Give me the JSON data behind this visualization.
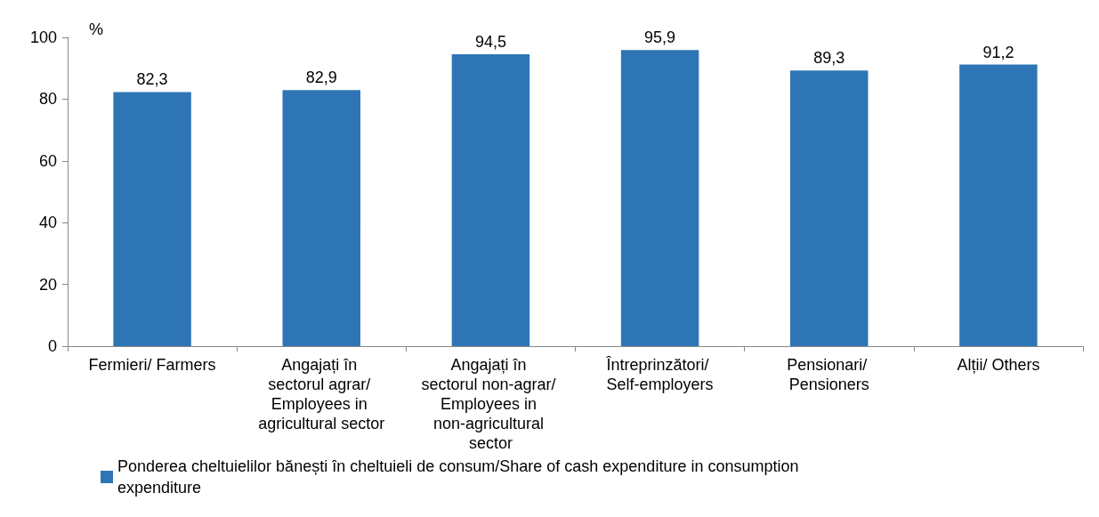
{
  "chart_data": {
    "type": "bar",
    "ylabel": "%",
    "categories": [
      "Fermieri/ Farmers",
      "Angajați în sectorul agrar/ Employees in agricultural sector",
      "Angajați în sectorul non-agrar/ Employees in non-agricultural sector",
      "Întreprinzători/ Self-employers",
      "Pensionari/ Pensioners",
      "Alții/ Others"
    ],
    "series": [
      {
        "name": "Ponderea cheltuielilor bănești în cheltuieli de consum/Share of cash expenditure in consumption expenditure",
        "color": "#2e75b6",
        "values": [
          82.3,
          82.9,
          94.5,
          95.9,
          89.3,
          91.2
        ],
        "value_labels": [
          "82,3",
          "82,9",
          "94,5",
          "95,9",
          "89,3",
          "91,2"
        ]
      }
    ],
    "ylim": [
      0,
      100
    ],
    "yticks": [
      0,
      20,
      40,
      60,
      80,
      100
    ],
    "grid": false,
    "legend": "bottom"
  }
}
